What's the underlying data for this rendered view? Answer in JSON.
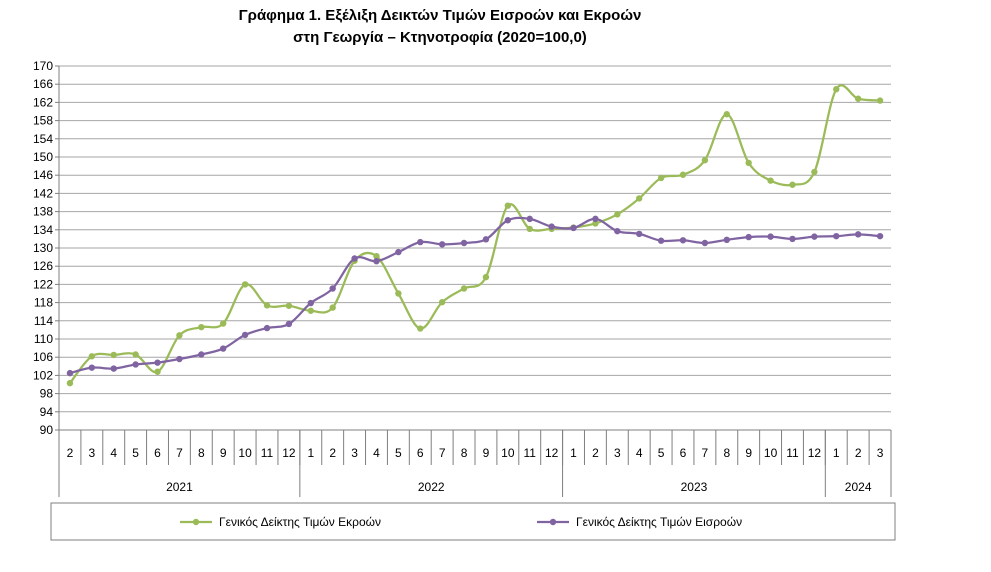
{
  "title_line1": "Γράφημα 1. Εξέλιξη Δεικτών Τιμών Εισροών και Εκροών",
  "title_line2": "στη Γεωργία – Κτηνοτροφία (2020=100,0)",
  "colors": {
    "output": "#9bbb59",
    "input": "#8064a2",
    "grid": "#a6a6a6",
    "axis": "#7f7f7f"
  },
  "chart_data": {
    "type": "line",
    "title": "Γράφημα 1. Εξέλιξη Δεικτών Τιμών Εισροών και Εκροών στη Γεωργία – Κτηνοτροφία (2020=100,0)",
    "ylim": [
      90,
      170
    ],
    "yticks": [
      90,
      94,
      98,
      102,
      106,
      110,
      114,
      118,
      122,
      126,
      130,
      134,
      138,
      142,
      146,
      150,
      154,
      158,
      162,
      166,
      170
    ],
    "x": [
      "2",
      "3",
      "4",
      "5",
      "6",
      "7",
      "8",
      "9",
      "10",
      "11",
      "12",
      "1",
      "2",
      "3",
      "4",
      "5",
      "6",
      "7",
      "8",
      "9",
      "10",
      "11",
      "12",
      "1",
      "2",
      "3",
      "4",
      "5",
      "6",
      "7",
      "8",
      "9",
      "10",
      "11",
      "12",
      "1",
      "2",
      "3"
    ],
    "year_groups": [
      {
        "label": "2021",
        "count": 11
      },
      {
        "label": "2022",
        "count": 12
      },
      {
        "label": "2023",
        "count": 12
      },
      {
        "label": "2024",
        "count": 3
      }
    ],
    "grid": true,
    "legend_position": "bottom",
    "series": [
      {
        "name": "Γενικός Δείκτης Τιμών Εκροών",
        "color": "#9bbb59",
        "values": [
          100.3,
          106.2,
          106.5,
          106.6,
          102.8,
          110.8,
          112.6,
          113.4,
          122.0,
          117.4,
          117.3,
          116.2,
          116.9,
          127.2,
          128.2,
          120.0,
          112.3,
          118.1,
          121.1,
          123.6,
          139.3,
          134.2,
          134.2,
          134.5,
          135.4,
          137.4,
          140.9,
          145.4,
          146.1,
          149.3,
          159.4,
          148.7,
          144.8,
          143.9,
          146.7,
          164.9,
          162.8,
          162.4
        ]
      },
      {
        "name": "Γενικός Δείκτης Τιμών Εισροών",
        "color": "#8064a2",
        "values": [
          102.5,
          103.7,
          103.5,
          104.4,
          104.8,
          105.6,
          106.6,
          107.9,
          110.9,
          112.4,
          113.3,
          117.9,
          121.1,
          127.7,
          127.1,
          129.1,
          131.3,
          130.8,
          131.1,
          131.9,
          136.1,
          136.4,
          134.7,
          134.4,
          136.4,
          133.7,
          133.1,
          131.6,
          131.7,
          131.1,
          131.8,
          132.4,
          132.5,
          132.0,
          132.5,
          132.6,
          133.0,
          132.6
        ]
      }
    ]
  }
}
